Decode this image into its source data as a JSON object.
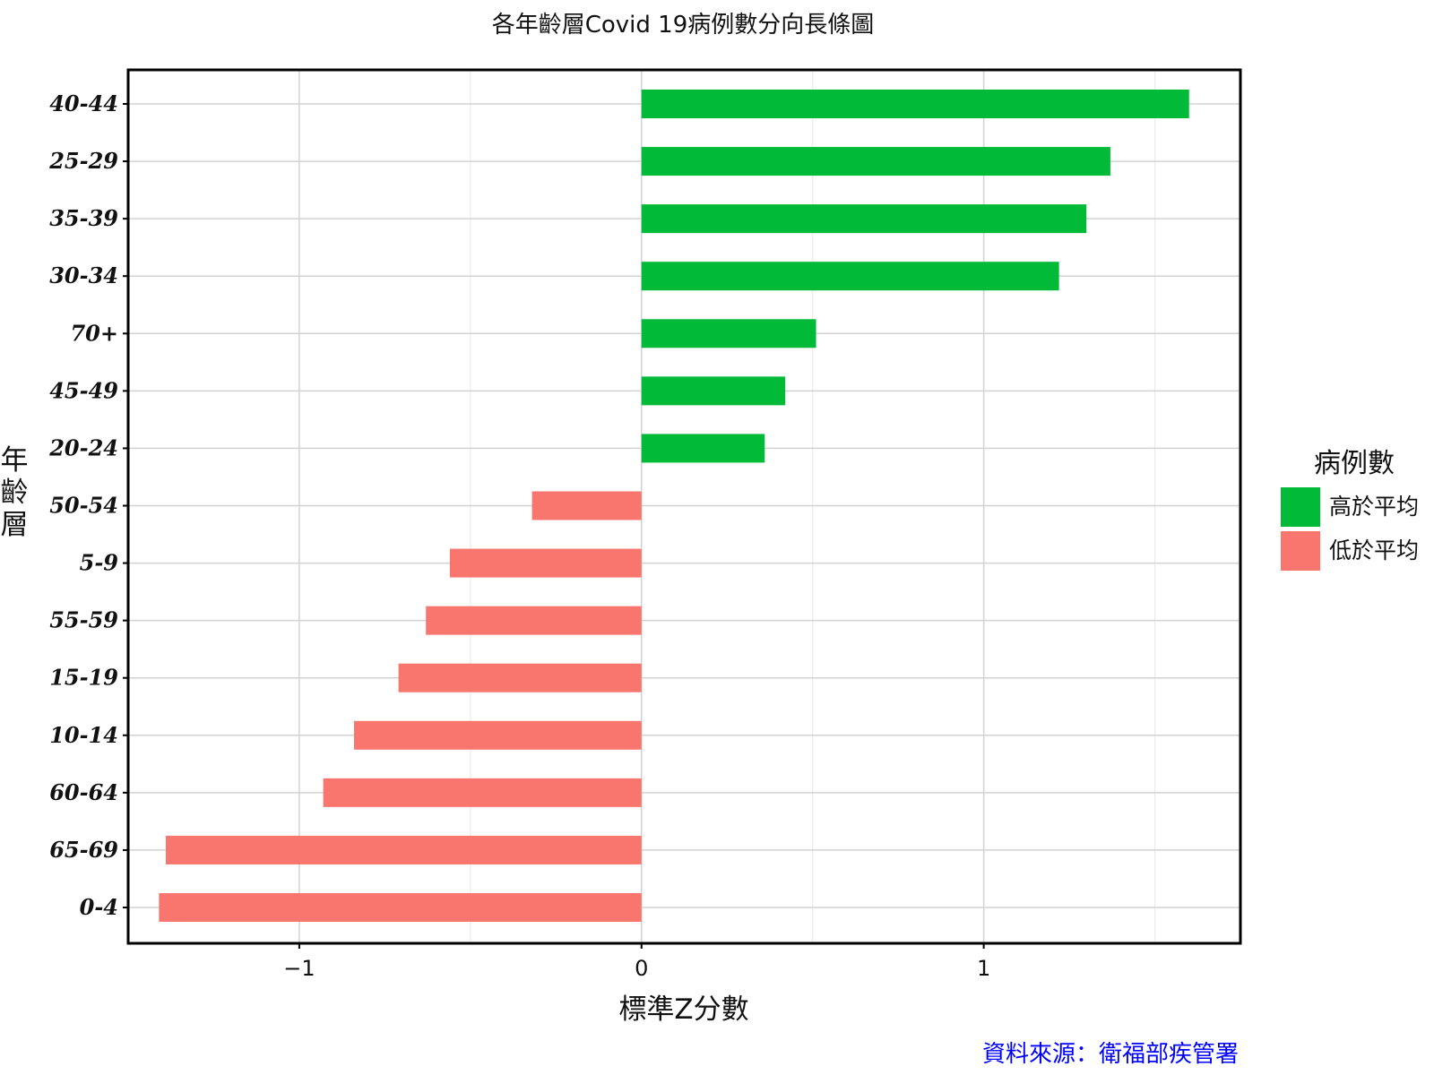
{
  "chart_data": {
    "type": "bar",
    "orientation": "horizontal",
    "title": "各年齡層Covid 19病例數分向長條圖",
    "xlabel": "標準Z分數",
    "ylabel": "年齡層",
    "xlim": [
      -1.5,
      1.75
    ],
    "xticks": [
      -1,
      0,
      1
    ],
    "x_tick_labels": [
      "−1",
      "0",
      "1"
    ],
    "grid": true,
    "categories": [
      "40-44",
      "25-29",
      "35-39",
      "30-34",
      "70+",
      "45-49",
      "20-24",
      "50-54",
      "5-9",
      "55-59",
      "15-19",
      "10-14",
      "60-64",
      "65-69",
      "0-4"
    ],
    "values": [
      1.6,
      1.37,
      1.3,
      1.22,
      0.51,
      0.42,
      0.36,
      -0.32,
      -0.56,
      -0.63,
      -0.71,
      -0.84,
      -0.93,
      -1.39,
      -1.41
    ],
    "groups": [
      "above",
      "above",
      "above",
      "above",
      "above",
      "above",
      "above",
      "below",
      "below",
      "below",
      "below",
      "below",
      "below",
      "below",
      "below"
    ],
    "legend": {
      "title": "病例數",
      "position": "right",
      "items": [
        {
          "key": "above",
          "label": "高於平均",
          "color": "#00ba38"
        },
        {
          "key": "below",
          "label": "低於平均",
          "color": "#f8766d"
        }
      ]
    },
    "source": "資料來源：衛福部疾管署"
  }
}
